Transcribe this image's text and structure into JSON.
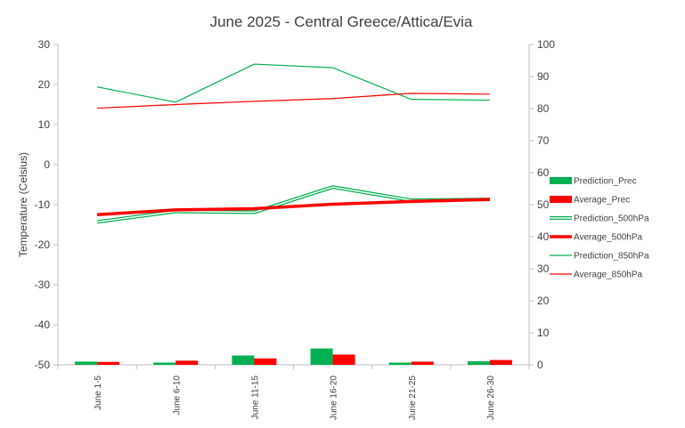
{
  "chart_data": {
    "title": "June 2025 - Central Greece/Attica/Evia",
    "ylabel": "Temperature (Celsius)",
    "y2label": "",
    "type": "line",
    "categories": [
      "June 1-5",
      "June 6-10",
      "June 11-15",
      "June 16-20",
      "June 21-25",
      "June 26-30"
    ],
    "ylim": [
      -50,
      30
    ],
    "yticks": [
      30,
      20,
      10,
      0,
      -10,
      -20,
      -30,
      -40,
      -50
    ],
    "y2lim": [
      0,
      100
    ],
    "y2ticks": [
      100,
      90,
      80,
      70,
      60,
      50,
      40,
      30,
      20,
      10,
      0
    ],
    "grid": false,
    "legend_position": "right",
    "series": [
      {
        "name": "Prediction_Prec",
        "kind": "bar",
        "axis": "right",
        "color": "#00b050",
        "values": [
          1.0,
          0.7,
          2.9,
          5.1,
          0.7,
          1.1
        ]
      },
      {
        "name": "Average_Prec",
        "kind": "bar",
        "axis": "right",
        "color": "#ff0000",
        "values": [
          0.9,
          1.3,
          2.0,
          3.2,
          1.0,
          1.5
        ]
      },
      {
        "name": "Prediction_500hPa",
        "kind": "double-line",
        "axis": "left",
        "color": "#00b050",
        "values": [
          -14.3,
          -11.7,
          -11.9,
          -5.6,
          -8.9,
          -8.7
        ]
      },
      {
        "name": "Average_500hPa",
        "kind": "thick-line",
        "axis": "left",
        "color": "#ff0000",
        "values": [
          -12.5,
          -11.3,
          -11.0,
          -9.9,
          -9.2,
          -8.7
        ]
      },
      {
        "name": "Prediction_850hPa",
        "kind": "line",
        "axis": "left",
        "color": "#00b050",
        "values": [
          19.4,
          15.6,
          25.1,
          24.2,
          16.3,
          16.1
        ]
      },
      {
        "name": "Average_850hPa",
        "kind": "line",
        "axis": "left",
        "color": "#ff0000",
        "values": [
          14.1,
          15.0,
          15.8,
          16.5,
          17.8,
          17.6
        ]
      }
    ]
  }
}
